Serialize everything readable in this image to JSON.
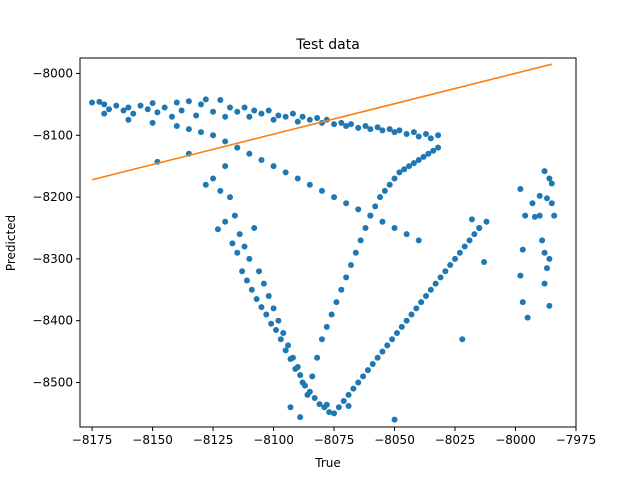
{
  "chart_data": {
    "type": "scatter",
    "title": "Test data",
    "xlabel": "True",
    "ylabel": "Predicted",
    "xlim": [
      -8180,
      -7975
    ],
    "ylim": [
      -8572,
      -7975
    ],
    "x_ticks": [
      -8175,
      -8150,
      -8125,
      -8100,
      -8075,
      -8050,
      -8025,
      -8000,
      -7975
    ],
    "y_ticks": [
      -8000,
      -8100,
      -8200,
      -8300,
      -8400,
      -8500
    ],
    "x_tick_labels": [
      "−8175",
      "−8150",
      "−8125",
      "−8100",
      "−8075",
      "−8050",
      "−8025",
      "−8000",
      "−7975"
    ],
    "y_tick_labels": [
      "−8000",
      "−8100",
      "−8200",
      "−8300",
      "−8400",
      "−8500"
    ],
    "grid": false,
    "colors": {
      "scatter": "#1f77b4",
      "line": "#ff7f0e"
    },
    "series": [
      {
        "type": "scatter",
        "marker": "circle",
        "points": [
          [
            -8175,
            -8047
          ],
          [
            -8172,
            -8046
          ],
          [
            -8170,
            -8050
          ],
          [
            -8168,
            -8058
          ],
          [
            -8165,
            -8052
          ],
          [
            -8162,
            -8060
          ],
          [
            -8160,
            -8055
          ],
          [
            -8158,
            -8065
          ],
          [
            -8155,
            -8052
          ],
          [
            -8152,
            -8058
          ],
          [
            -8150,
            -8048
          ],
          [
            -8148,
            -8063
          ],
          [
            -8145,
            -8055
          ],
          [
            -8142,
            -8070
          ],
          [
            -8140,
            -8047
          ],
          [
            -8138,
            -8060
          ],
          [
            -8135,
            -8045
          ],
          [
            -8132,
            -8068
          ],
          [
            -8130,
            -8050
          ],
          [
            -8128,
            -8042
          ],
          [
            -8125,
            -8062
          ],
          [
            -8122,
            -8043
          ],
          [
            -8120,
            -8070
          ],
          [
            -8118,
            -8055
          ],
          [
            -8115,
            -8062
          ],
          [
            -8112,
            -8055
          ],
          [
            -8110,
            -8070
          ],
          [
            -8108,
            -8060
          ],
          [
            -8105,
            -8065
          ],
          [
            -8102,
            -8060
          ],
          [
            -8100,
            -8075
          ],
          [
            -8098,
            -8068
          ],
          [
            -8095,
            -8070
          ],
          [
            -8092,
            -8065
          ],
          [
            -8090,
            -8078
          ],
          [
            -8088,
            -8070
          ],
          [
            -8085,
            -8075
          ],
          [
            -8082,
            -8072
          ],
          [
            -8080,
            -8080
          ],
          [
            -8078,
            -8075
          ],
          [
            -8075,
            -8082
          ],
          [
            -8072,
            -8080
          ],
          [
            -8070,
            -8085
          ],
          [
            -8068,
            -8082
          ],
          [
            -8065,
            -8088
          ],
          [
            -8062,
            -8085
          ],
          [
            -8060,
            -8090
          ],
          [
            -8057,
            -8087
          ],
          [
            -8055,
            -8092
          ],
          [
            -8052,
            -8090
          ],
          [
            -8050,
            -8095
          ],
          [
            -8048,
            -8092
          ],
          [
            -8045,
            -8098
          ],
          [
            -8042,
            -8095
          ],
          [
            -8040,
            -8102
          ],
          [
            -8037,
            -8098
          ],
          [
            -8035,
            -8105
          ],
          [
            -8032,
            -8100
          ],
          [
            -8170,
            -8065
          ],
          [
            -8160,
            -8075
          ],
          [
            -8150,
            -8080
          ],
          [
            -8140,
            -8085
          ],
          [
            -8135,
            -8090
          ],
          [
            -8130,
            -8095
          ],
          [
            -8125,
            -8100
          ],
          [
            -8120,
            -8110
          ],
          [
            -8115,
            -8120
          ],
          [
            -8110,
            -8130
          ],
          [
            -8105,
            -8140
          ],
          [
            -8100,
            -8150
          ],
          [
            -8095,
            -8160
          ],
          [
            -8090,
            -8170
          ],
          [
            -8085,
            -8180
          ],
          [
            -8080,
            -8190
          ],
          [
            -8075,
            -8200
          ],
          [
            -8070,
            -8210
          ],
          [
            -8065,
            -8220
          ],
          [
            -8060,
            -8230
          ],
          [
            -8055,
            -8240
          ],
          [
            -8050,
            -8250
          ],
          [
            -8045,
            -8260
          ],
          [
            -8040,
            -8270
          ],
          [
            -8148,
            -8143
          ],
          [
            -8135,
            -8130
          ],
          [
            -8128,
            -8180
          ],
          [
            -8125,
            -8170
          ],
          [
            -8122,
            -8190
          ],
          [
            -8120,
            -8150
          ],
          [
            -8118,
            -8200
          ],
          [
            -8116,
            -8230
          ],
          [
            -8114,
            -8260
          ],
          [
            -8112,
            -8280
          ],
          [
            -8110,
            -8300
          ],
          [
            -8108,
            -8250
          ],
          [
            -8106,
            -8320
          ],
          [
            -8104,
            -8340
          ],
          [
            -8102,
            -8360
          ],
          [
            -8100,
            -8380
          ],
          [
            -8098,
            -8400
          ],
          [
            -8096,
            -8420
          ],
          [
            -8094,
            -8440
          ],
          [
            -8092,
            -8460
          ],
          [
            -8090,
            -8475
          ],
          [
            -8088,
            -8500
          ],
          [
            -8086,
            -8520
          ],
          [
            -8084,
            -8490
          ],
          [
            -8082,
            -8460
          ],
          [
            -8080,
            -8430
          ],
          [
            -8078,
            -8410
          ],
          [
            -8076,
            -8390
          ],
          [
            -8074,
            -8370
          ],
          [
            -8072,
            -8350
          ],
          [
            -8070,
            -8330
          ],
          [
            -8068,
            -8310
          ],
          [
            -8066,
            -8290
          ],
          [
            -8064,
            -8270
          ],
          [
            -8062,
            -8250
          ],
          [
            -8060,
            -8230
          ],
          [
            -8058,
            -8215
          ],
          [
            -8056,
            -8200
          ],
          [
            -8054,
            -8190
          ],
          [
            -8052,
            -8180
          ],
          [
            -8050,
            -8170
          ],
          [
            -8048,
            -8160
          ],
          [
            -8046,
            -8155
          ],
          [
            -8044,
            -8150
          ],
          [
            -8042,
            -8145
          ],
          [
            -8040,
            -8140
          ],
          [
            -8038,
            -8135
          ],
          [
            -8036,
            -8130
          ],
          [
            -8034,
            -8125
          ],
          [
            -8032,
            -8120
          ],
          [
            -8123,
            -8252
          ],
          [
            -8120,
            -8240
          ],
          [
            -8117,
            -8275
          ],
          [
            -8115,
            -8290
          ],
          [
            -8113,
            -8320
          ],
          [
            -8111,
            -8335
          ],
          [
            -8109,
            -8350
          ],
          [
            -8107,
            -8365
          ],
          [
            -8105,
            -8378
          ],
          [
            -8103,
            -8390
          ],
          [
            -8101,
            -8405
          ],
          [
            -8099,
            -8415
          ],
          [
            -8097,
            -8430
          ],
          [
            -8095,
            -8448
          ],
          [
            -8093,
            -8462
          ],
          [
            -8091,
            -8478
          ],
          [
            -8089,
            -8488
          ],
          [
            -8087,
            -8505
          ],
          [
            -8085,
            -8515
          ],
          [
            -8083,
            -8525
          ],
          [
            -8081,
            -8535
          ],
          [
            -8079,
            -8540
          ],
          [
            -8077,
            -8548
          ],
          [
            -8075,
            -8550
          ],
          [
            -8073,
            -8540
          ],
          [
            -8071,
            -8530
          ],
          [
            -8069,
            -8520
          ],
          [
            -8067,
            -8510
          ],
          [
            -8065,
            -8500
          ],
          [
            -8063,
            -8490
          ],
          [
            -8061,
            -8480
          ],
          [
            -8059,
            -8470
          ],
          [
            -8057,
            -8460
          ],
          [
            -8055,
            -8450
          ],
          [
            -8053,
            -8440
          ],
          [
            -8051,
            -8430
          ],
          [
            -8049,
            -8420
          ],
          [
            -8047,
            -8410
          ],
          [
            -8045,
            -8400
          ],
          [
            -8043,
            -8390
          ],
          [
            -8041,
            -8380
          ],
          [
            -8039,
            -8370
          ],
          [
            -8037,
            -8360
          ],
          [
            -8035,
            -8350
          ],
          [
            -8033,
            -8340
          ],
          [
            -8031,
            -8330
          ],
          [
            -8029,
            -8320
          ],
          [
            -8027,
            -8310
          ],
          [
            -8025,
            -8300
          ],
          [
            -8023,
            -8290
          ],
          [
            -8021,
            -8280
          ],
          [
            -8019,
            -8270
          ],
          [
            -8017,
            -8260
          ],
          [
            -8015,
            -8250
          ],
          [
            -8018,
            -8236
          ],
          [
            -8015,
            -8250
          ],
          [
            -8012,
            -8240
          ],
          [
            -8013,
            -8305
          ],
          [
            -8022,
            -8430
          ],
          [
            -8089,
            -8556
          ],
          [
            -8050,
            -8560
          ],
          [
            -8069,
            -8538
          ],
          [
            -8078,
            -8536
          ],
          [
            -8093,
            -8540
          ],
          [
            -7998,
            -8187
          ],
          [
            -7997,
            -8285
          ],
          [
            -7998,
            -8327
          ],
          [
            -7997,
            -8370
          ],
          [
            -7995,
            -8395
          ],
          [
            -7996,
            -8230
          ],
          [
            -7993,
            -8210
          ],
          [
            -7992,
            -8232
          ],
          [
            -7990,
            -8198
          ],
          [
            -7988,
            -8158
          ],
          [
            -7987,
            -8202
          ],
          [
            -7986,
            -8170
          ],
          [
            -7985,
            -8178
          ],
          [
            -7984,
            -8230
          ],
          [
            -7989,
            -8270
          ],
          [
            -7988,
            -8290
          ],
          [
            -7987,
            -8315
          ],
          [
            -7988,
            -8340
          ],
          [
            -7986,
            -8376
          ],
          [
            -7985,
            -8210
          ],
          [
            -7986,
            -8300
          ],
          [
            -7990,
            -8230
          ]
        ]
      },
      {
        "type": "line",
        "points": [
          [
            -8175,
            -8172
          ],
          [
            -7985,
            -7985
          ]
        ]
      }
    ]
  }
}
